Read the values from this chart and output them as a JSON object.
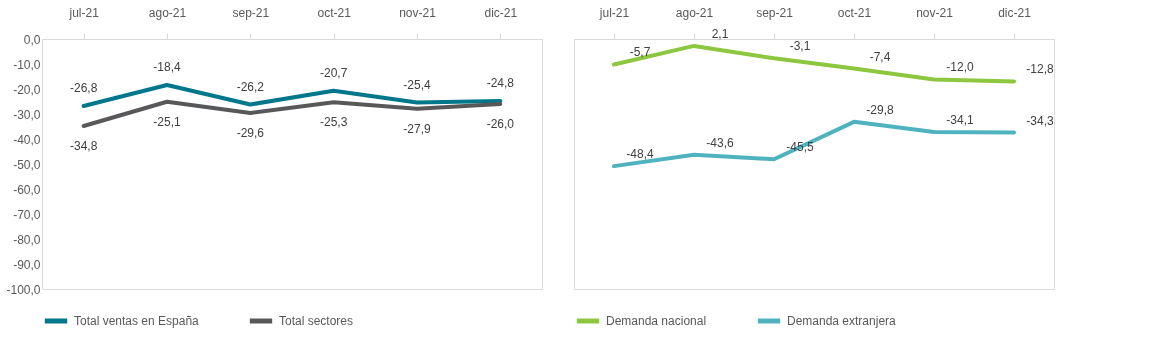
{
  "chart_data": [
    {
      "type": "line",
      "categories": [
        "jul-21",
        "ago-21",
        "sep-21",
        "oct-21",
        "nov-21",
        "dic-21"
      ],
      "ylim": [
        -100,
        0
      ],
      "yticks": [
        {
          "value": 0,
          "label": "0,0"
        },
        {
          "value": -10,
          "label": "-10,0"
        },
        {
          "value": -20,
          "label": "-20,0"
        },
        {
          "value": -30,
          "label": "-30,0"
        },
        {
          "value": -40,
          "label": "-40,0"
        },
        {
          "value": -50,
          "label": "-50,0"
        },
        {
          "value": -60,
          "label": "-60,0"
        },
        {
          "value": -70,
          "label": "-70,0"
        },
        {
          "value": -80,
          "label": "-80,0"
        },
        {
          "value": -90,
          "label": "-90,0"
        },
        {
          "value": -100,
          "label": "-100,0"
        }
      ],
      "series": [
        {
          "name": "Total ventas en España",
          "color": "#00778b",
          "values": [
            -26.8,
            -18.4,
            -26.2,
            -20.7,
            -25.4,
            -24.8
          ],
          "value_labels": [
            "-26,8",
            "-18,4",
            "-26,2",
            "-20,7",
            "-25,4",
            "-24,8"
          ]
        },
        {
          "name": "Total sectores",
          "color": "#58585a",
          "values": [
            -34.8,
            -25.1,
            -29.6,
            -25.3,
            -27.9,
            -26.0
          ],
          "value_labels": [
            "-34,8",
            "-25,1",
            "-29,6",
            "-25,3",
            "-27,9",
            "-26,0"
          ]
        }
      ],
      "legend": "bottom"
    },
    {
      "type": "line",
      "categories": [
        "jul-21",
        "ago-21",
        "sep-21",
        "oct-21",
        "nov-21",
        "dic-21"
      ],
      "ylim": [
        -100,
        5
      ],
      "tick_labels": "x",
      "series": [
        {
          "name": "Demanda nacional",
          "color": "#8dc63f",
          "values": [
            -5.7,
            2.1,
            -3.1,
            -7.4,
            -12.0,
            -12.8
          ],
          "value_labels": [
            "-5,7",
            "2,1",
            "-3,1",
            "-7,4",
            "-12,0",
            "-12,8"
          ]
        },
        {
          "name": "Demanda extranjera",
          "color": "#4fb3bf",
          "values": [
            -48.4,
            -43.6,
            -45.5,
            -29.8,
            -34.1,
            -34.3
          ],
          "value_labels": [
            "-48,4",
            "-43,6",
            "-45,5",
            "-29,8",
            "-34,1",
            "-34,3"
          ]
        }
      ],
      "legend": "bottom"
    }
  ]
}
